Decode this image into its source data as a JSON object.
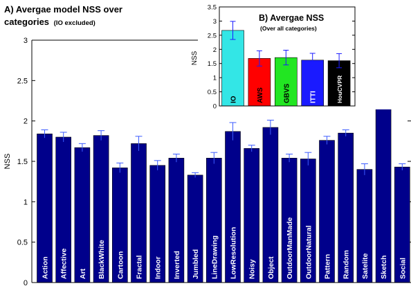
{
  "colors": {
    "main_bar": "#00008b",
    "error_bar": "#3b5bff",
    "inset_error": "#1a1aff",
    "axis": "#000000",
    "background": "#ffffff"
  },
  "chart_data": [
    {
      "type": "bar",
      "title": "A) Avergae model NSS over",
      "title_line2": "categories",
      "subtitle": "(IO excluded)",
      "xlabel": "",
      "ylabel": "NSS",
      "ylim": [
        0,
        3
      ],
      "yticks": [
        0,
        0.5,
        1,
        1.5,
        2,
        2.5,
        3
      ],
      "ytick_labels": [
        "0",
        "0.5",
        "1",
        "1.5",
        "2",
        "2.5",
        "3"
      ],
      "grid": false,
      "categories": [
        "Action",
        "Affective",
        "Art",
        "BlackWhite",
        "Cartoon",
        "Fractal",
        "Indoor",
        "Inverted",
        "Jumbled",
        "LineDrawing",
        "LowResolution",
        "Noisy",
        "Object",
        "OutdoorManMade",
        "OutdoorNatural",
        "Pattern",
        "Random",
        "Satelite",
        "Sketch",
        "Social"
      ],
      "values": [
        1.84,
        1.8,
        1.67,
        1.82,
        1.42,
        1.72,
        1.45,
        1.54,
        1.33,
        1.54,
        1.87,
        1.66,
        1.92,
        1.54,
        1.53,
        1.76,
        1.85,
        1.4,
        2.45,
        1.43
      ],
      "errors": [
        0.05,
        0.06,
        0.05,
        0.06,
        0.06,
        0.09,
        0.06,
        0.05,
        0.03,
        0.07,
        0.11,
        0.04,
        0.09,
        0.05,
        0.08,
        0.05,
        0.04,
        0.07,
        0.12,
        0.04
      ],
      "bar_color": "#00008b",
      "label_color": "#ffffff"
    },
    {
      "type": "bar",
      "title": "B) Avergae NSS",
      "subtitle": "(Over all categories)",
      "xlabel": "",
      "ylabel": "NSS",
      "ylim": [
        0,
        3.5
      ],
      "yticks": [
        0,
        0.5,
        1,
        1.5,
        2,
        2.5,
        3,
        3.5
      ],
      "ytick_labels": [
        "0",
        "0.5",
        "1",
        "1.5",
        "2",
        "2.5",
        "3",
        "3.5"
      ],
      "grid": false,
      "categories": [
        "IO",
        "AWS",
        "GBVS",
        "ITTI",
        "HouCVPR"
      ],
      "values": [
        2.67,
        1.68,
        1.71,
        1.62,
        1.6
      ],
      "errors": [
        0.32,
        0.27,
        0.26,
        0.24,
        0.25
      ],
      "bar_colors": [
        "#33e6e6",
        "#ff0000",
        "#22e622",
        "#1a1aff",
        "#000000"
      ],
      "label_colors": [
        "#000000",
        "#000000",
        "#000000",
        "#ffffff",
        "#ffffff"
      ]
    }
  ]
}
